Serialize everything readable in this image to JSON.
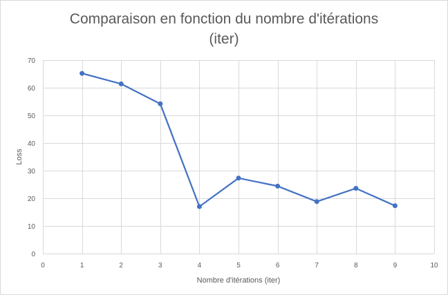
{
  "chart_data": {
    "type": "scatter",
    "title_line1": "Comparaison en fonction du nombre d'itérations",
    "title_line2": "(iter)",
    "xlabel": "Nombre  d'itérations (iter)",
    "ylabel": "Loss",
    "xlim": [
      0,
      10
    ],
    "ylim": [
      0,
      70
    ],
    "x_ticks": [
      "0",
      "1",
      "2",
      "3",
      "4",
      "5",
      "6",
      "7",
      "8",
      "9",
      "10"
    ],
    "y_ticks": [
      "0",
      "10",
      "20",
      "30",
      "40",
      "50",
      "60",
      "70"
    ],
    "grid": true,
    "series": [
      {
        "color": "#4472c4",
        "x": [
          1,
          2,
          3,
          4,
          5,
          6,
          7,
          8,
          9
        ],
        "y": [
          65.2,
          61.4,
          54.2,
          17.0,
          27.3,
          24.4,
          18.8,
          23.6,
          17.3
        ]
      }
    ]
  }
}
